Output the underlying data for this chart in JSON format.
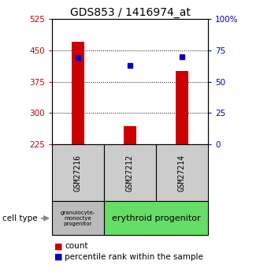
{
  "title": "GDS853 / 1416974_at",
  "samples": [
    "GSM27216",
    "GSM27212",
    "GSM27214"
  ],
  "bar_values": [
    470,
    268,
    400
  ],
  "percentile_values": [
    69,
    63,
    70
  ],
  "bar_color": "#cc0000",
  "dot_color": "#0000cc",
  "ylim_left": [
    225,
    525
  ],
  "ylim_right": [
    0,
    100
  ],
  "yticks_left": [
    225,
    300,
    375,
    450,
    525
  ],
  "yticks_right": [
    0,
    25,
    50,
    75,
    100
  ],
  "ytick_labels_left": [
    "225",
    "300",
    "375",
    "450",
    "525"
  ],
  "ytick_labels_right": [
    "0",
    "25",
    "50",
    "75",
    "100%"
  ],
  "cell_type_0": "granulocyte-\nmonoctye\nprogenitor",
  "cell_type_1": "erythroid progenitor",
  "cell_type_color_0": "#bbbbbb",
  "cell_type_color_1": "#66dd66",
  "cell_type_label": "cell type",
  "legend_count_label": "count",
  "legend_pct_label": "percentile rank within the sample",
  "title_fontsize": 10,
  "axis_color_left": "#cc0000",
  "axis_color_right": "#0000cc",
  "bar_width": 0.25,
  "dot_marker_size": 5
}
